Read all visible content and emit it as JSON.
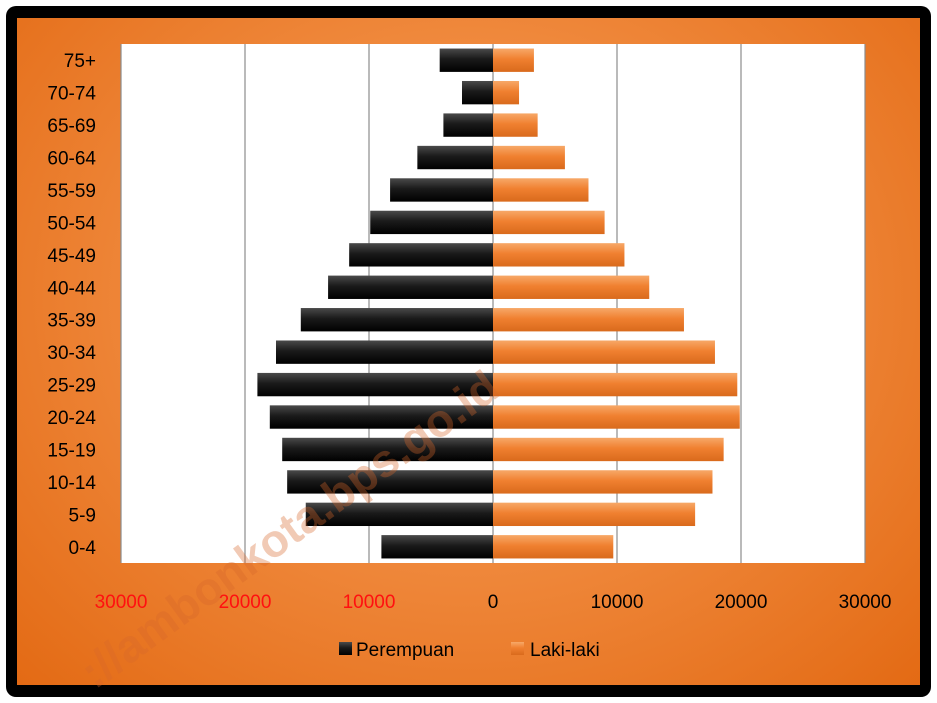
{
  "chart_data": {
    "type": "bar",
    "orientation": "horizontal-population-pyramid",
    "categories": [
      "0-4",
      "5-9",
      "10-14",
      "15-19",
      "20-24",
      "25-29",
      "30-34",
      "35-39",
      "40-44",
      "45-49",
      "50-54",
      "55-59",
      "60-64",
      "65-69",
      "70-74",
      "75+"
    ],
    "series": [
      {
        "name": "Perempuan",
        "side": "left",
        "color": "#1a1a1a",
        "values": [
          9000,
          15100,
          16600,
          17000,
          18000,
          19000,
          17500,
          15500,
          13300,
          11600,
          9900,
          8300,
          6100,
          4000,
          2500,
          4300
        ]
      },
      {
        "name": "Laki-laki",
        "side": "right",
        "color": "#f08030",
        "values": [
          9700,
          16300,
          17700,
          18600,
          19900,
          19700,
          17900,
          15400,
          12600,
          10600,
          9000,
          7700,
          5800,
          3600,
          2100,
          3300
        ]
      }
    ],
    "xlim": [
      -30000,
      30000
    ],
    "xticks": [
      {
        "value": -30000,
        "label": "30000",
        "color": "#ff1010"
      },
      {
        "value": -20000,
        "label": "20000",
        "color": "#ff1010"
      },
      {
        "value": -10000,
        "label": "10000",
        "color": "#ff1010"
      },
      {
        "value": 0,
        "label": "0",
        "color": "#000000"
      },
      {
        "value": 10000,
        "label": "10000",
        "color": "#000000"
      },
      {
        "value": 20000,
        "label": "20000",
        "color": "#000000"
      },
      {
        "value": 30000,
        "label": "30000",
        "color": "#000000"
      }
    ],
    "grid": "vertical",
    "legend_position": "bottom"
  },
  "watermark": "://ambonkota.bps.go.id"
}
